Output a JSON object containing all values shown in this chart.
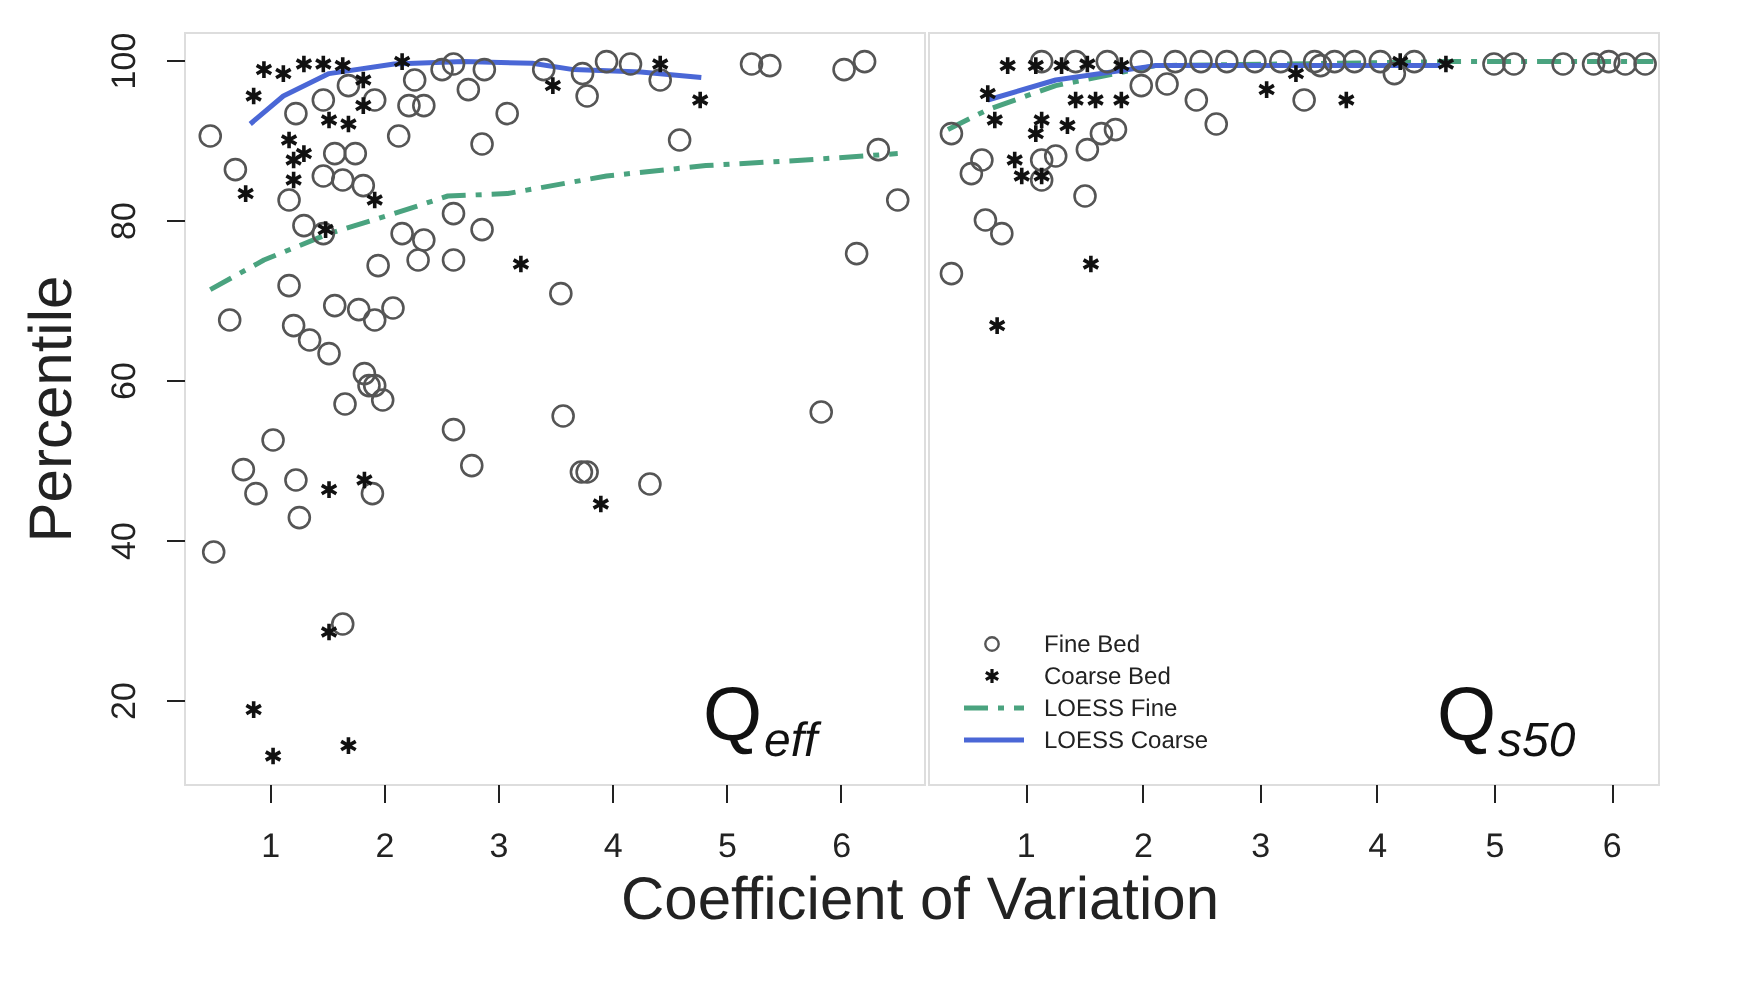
{
  "chart_data": [
    {
      "type": "scatter",
      "xlabel": "Coefficient of Variation",
      "ylabel": "Percentile",
      "xlim": [
        0.25,
        6.73
      ],
      "ylim": [
        9.5,
        103.5
      ],
      "xticks": [
        1,
        2,
        3,
        4,
        5,
        6
      ],
      "yticks": [
        20,
        40,
        60,
        80,
        100
      ],
      "grid": false,
      "annotations": [
        "Q$_{eff}$"
      ],
      "series": [
        {
          "marker": "circle",
          "color": "#555555",
          "x": [
            0.48,
            0.7,
            1.17,
            0.65,
            1.17,
            1.21,
            1.35,
            1.52,
            1.57,
            1.78,
            1.92,
            2.08,
            1.83,
            1.92,
            1.3,
            1.47,
            1.47,
            1.64,
            1.75,
            1.57,
            1.82,
            2.13,
            1.95,
            2.16,
            2.3,
            2.35,
            2.61,
            2.61,
            2.86,
            2.86,
            2.22,
            2.35,
            2.74,
            3.08,
            2.88,
            2.61,
            2.51,
            2.27,
            1.92,
            1.69,
            1.47,
            1.23,
            3.4,
            3.74,
            3.78,
            3.95,
            4.16,
            4.42,
            4.59,
            5.22,
            5.38,
            6.03,
            6.21,
            6.33,
            6.5,
            6.14,
            3.55,
            0.51,
            0.77,
            0.88,
            1.03,
            1.23,
            1.26,
            1.66,
            1.87,
            1.99,
            1.9,
            1.64,
            2.61,
            2.77,
            3.57,
            3.73,
            3.78,
            4.33,
            5.83
          ],
          "values": [
            90.5,
            86.3,
            82.5,
            67.5,
            71.8,
            66.8,
            65,
            63.3,
            69.3,
            68.8,
            67.5,
            69,
            60.8,
            59.3,
            79.3,
            78.3,
            85.5,
            85,
            88.3,
            88.3,
            84.3,
            90.5,
            74.3,
            78.3,
            75,
            77.5,
            75,
            80.8,
            78.8,
            89.5,
            94.3,
            94.3,
            96.3,
            93.3,
            98.8,
            99.5,
            98.8,
            97.5,
            95,
            96.8,
            95,
            93.3,
            98.8,
            98.3,
            95.5,
            99.8,
            99.5,
            97.5,
            90,
            99.5,
            99.3,
            98.8,
            99.8,
            88.8,
            82.5,
            75.8,
            70.8,
            38.5,
            48.8,
            45.8,
            52.5,
            47.5,
            42.8,
            57,
            59.3,
            57.5,
            45.8,
            29.5,
            53.8,
            49.3,
            55.5,
            48.5,
            48.5,
            47,
            56
          ]
        },
        {
          "marker": "cross",
          "color": "#111111",
          "x": [
            0.95,
            0.86,
            0.79,
            1.21,
            1.21,
            1.3,
            1.52,
            1.69,
            1.49,
            1.92,
            1.12,
            1.3,
            1.47,
            1.64,
            1.82,
            2.16,
            1.82,
            1.17,
            3.2,
            3.48,
            4.42,
            4.77,
            1.52,
            1.83,
            3.9,
            1.52,
            0.86,
            1.03,
            1.69
          ],
          "values": [
            98.8,
            95.5,
            83.3,
            85,
            87.5,
            88.3,
            92.5,
            92,
            78.8,
            82.5,
            98.3,
            99.5,
            99.5,
            99.3,
            97.5,
            99.8,
            94.3,
            90,
            74.5,
            96.8,
            99.5,
            95,
            46.3,
            47.5,
            44.5,
            28.5,
            18.8,
            13,
            14.3
          ]
        },
        {
          "type": "line",
          "line_style": "dashed",
          "color": "#4aa37f",
          "x": [
            0.48,
            0.95,
            1.52,
            2.09,
            2.56,
            3.08,
            3.95,
            4.82,
            5.69,
            6.5
          ],
          "values": [
            71.3,
            75,
            78.3,
            80.8,
            83,
            83.3,
            85.5,
            86.8,
            87.5,
            88.3
          ]
        },
        {
          "type": "line",
          "line_style": "solid",
          "color": "#4a67d6",
          "x": [
            0.83,
            1.12,
            1.52,
            2.09,
            2.7,
            3.3,
            3.66,
            4.25,
            4.78
          ],
          "values": [
            92,
            95.5,
            98.3,
            99.5,
            99.8,
            99.6,
            98.8,
            98.5,
            97.8
          ]
        }
      ]
    },
    {
      "type": "scatter",
      "xlim": [
        0.17,
        6.4
      ],
      "ylim": [
        9.5,
        103.5
      ],
      "xticks": [
        1,
        2,
        3,
        4,
        5,
        6
      ],
      "tick_labels": "x",
      "grid": false,
      "legend": "bottom left",
      "annotations": [
        "Q$_{s50}$"
      ],
      "series": [
        {
          "name": "Fine Bed",
          "marker": "circle",
          "color": "#555555",
          "x": [
            0.37,
            0.37,
            0.54,
            0.63,
            0.66,
            0.8,
            1.14,
            1.26,
            1.14,
            1.51,
            1.53,
            1.65,
            1.77,
            2.46,
            2.63,
            3.38,
            4.15,
            5.0,
            5.17,
            5.59,
            5.85,
            5.98,
            6.12,
            6.29,
            1.14,
            1.43,
            1.7,
            1.99,
            2.28,
            2.5,
            2.72,
            2.96,
            3.18,
            3.47,
            3.64,
            3.81,
            4.03,
            4.32,
            1.99,
            2.21,
            3.52
          ],
          "values": [
            90.8,
            73.3,
            85.8,
            87.5,
            80,
            78.3,
            87.5,
            88,
            85,
            83,
            88.8,
            90.8,
            91.3,
            95,
            92,
            95,
            98.3,
            99.5,
            99.5,
            99.5,
            99.5,
            99.8,
            99.5,
            99.5,
            99.8,
            99.8,
            99.8,
            99.8,
            99.8,
            99.8,
            99.8,
            99.8,
            99.8,
            99.8,
            99.8,
            99.8,
            99.8,
            99.8,
            96.8,
            97,
            99.3
          ]
        },
        {
          "name": "Coarse Bed",
          "marker": "cross",
          "color": "#111111",
          "x": [
            0.85,
            0.68,
            0.74,
            0.91,
            0.97,
            1.14,
            1.09,
            1.14,
            1.36,
            1.43,
            1.56,
            0.76,
            3.06,
            3.74,
            3.31,
            4.2,
            4.59,
            1.09,
            1.31,
            1.53,
            1.82,
            1.6,
            1.82
          ],
          "values": [
            99.3,
            95.8,
            92.5,
            87.5,
            85.5,
            85.5,
            90.8,
            92.5,
            91.8,
            95,
            74.5,
            66.8,
            96.3,
            95,
            98.3,
            99.8,
            99.5,
            99.3,
            99.3,
            99.5,
            99.3,
            95,
            95
          ]
        },
        {
          "name": "LOESS Fine",
          "type": "line",
          "line_style": "dashed",
          "color": "#4aa37f",
          "x": [
            0.34,
            0.68,
            1.26,
            2.11,
            3.23,
            4.66,
            6.36
          ],
          "values": [
            91.3,
            93.8,
            96.8,
            99.3,
            99.5,
            99.8,
            99.8
          ]
        },
        {
          "name": "LOESS Coarse",
          "type": "line",
          "line_style": "solid",
          "color": "#4a67d6",
          "x": [
            0.68,
            1.26,
            2.11,
            3.23,
            4.54
          ],
          "values": [
            95,
            97.5,
            99.3,
            99.3,
            99.3
          ]
        }
      ]
    }
  ]
}
